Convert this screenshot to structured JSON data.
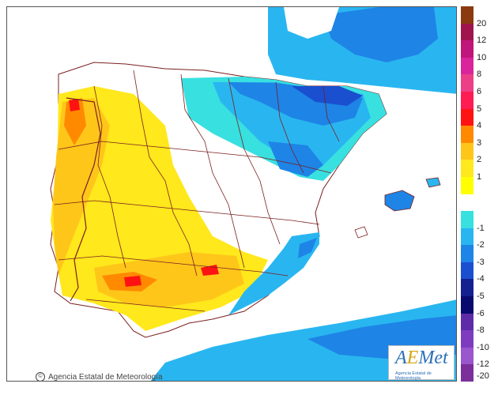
{
  "credit": "Agencia Estatal de Meteorología",
  "credit_icon": "©",
  "logo": {
    "main_a": "A",
    "main_e": "E",
    "main_rest": "Met",
    "sub": "Agencia Estatal de Meteorología"
  },
  "legend": {
    "ticks": [
      "20",
      "12",
      "10",
      "8",
      "6",
      "5",
      "4",
      "3",
      "2",
      "1",
      "-1",
      "-2",
      "-3",
      "-4",
      "-5",
      "-6",
      "-8",
      "-10",
      "-12",
      "-20"
    ],
    "colors": [
      "#8b3a0f",
      "#a0144e",
      "#c0157a",
      "#d9249c",
      "#ec3f88",
      "#ff1c52",
      "#ff1212",
      "#ff8a00",
      "#ffc61a",
      "#ffe81c",
      "#ffff00",
      "#ffffff",
      "#38e0e0",
      "#29b6f0",
      "#1e84e6",
      "#1a4fd0",
      "#14208f",
      "#0a0a6e",
      "#5f2aa8",
      "#7d3cc0",
      "#9a56cc",
      "#7a2f9a"
    ]
  },
  "map": {
    "colors": {
      "sea": "#ffffff",
      "warm_light": "#ffe81c",
      "warm": "#ffc61a",
      "warm_hot": "#ff8a00",
      "hot": "#ff1212",
      "cool_light": "#38e0e0",
      "cool": "#29b6f0",
      "cold": "#1e84e6",
      "very_cold": "#1a4fd0",
      "borders": "#7a1f1f"
    }
  }
}
